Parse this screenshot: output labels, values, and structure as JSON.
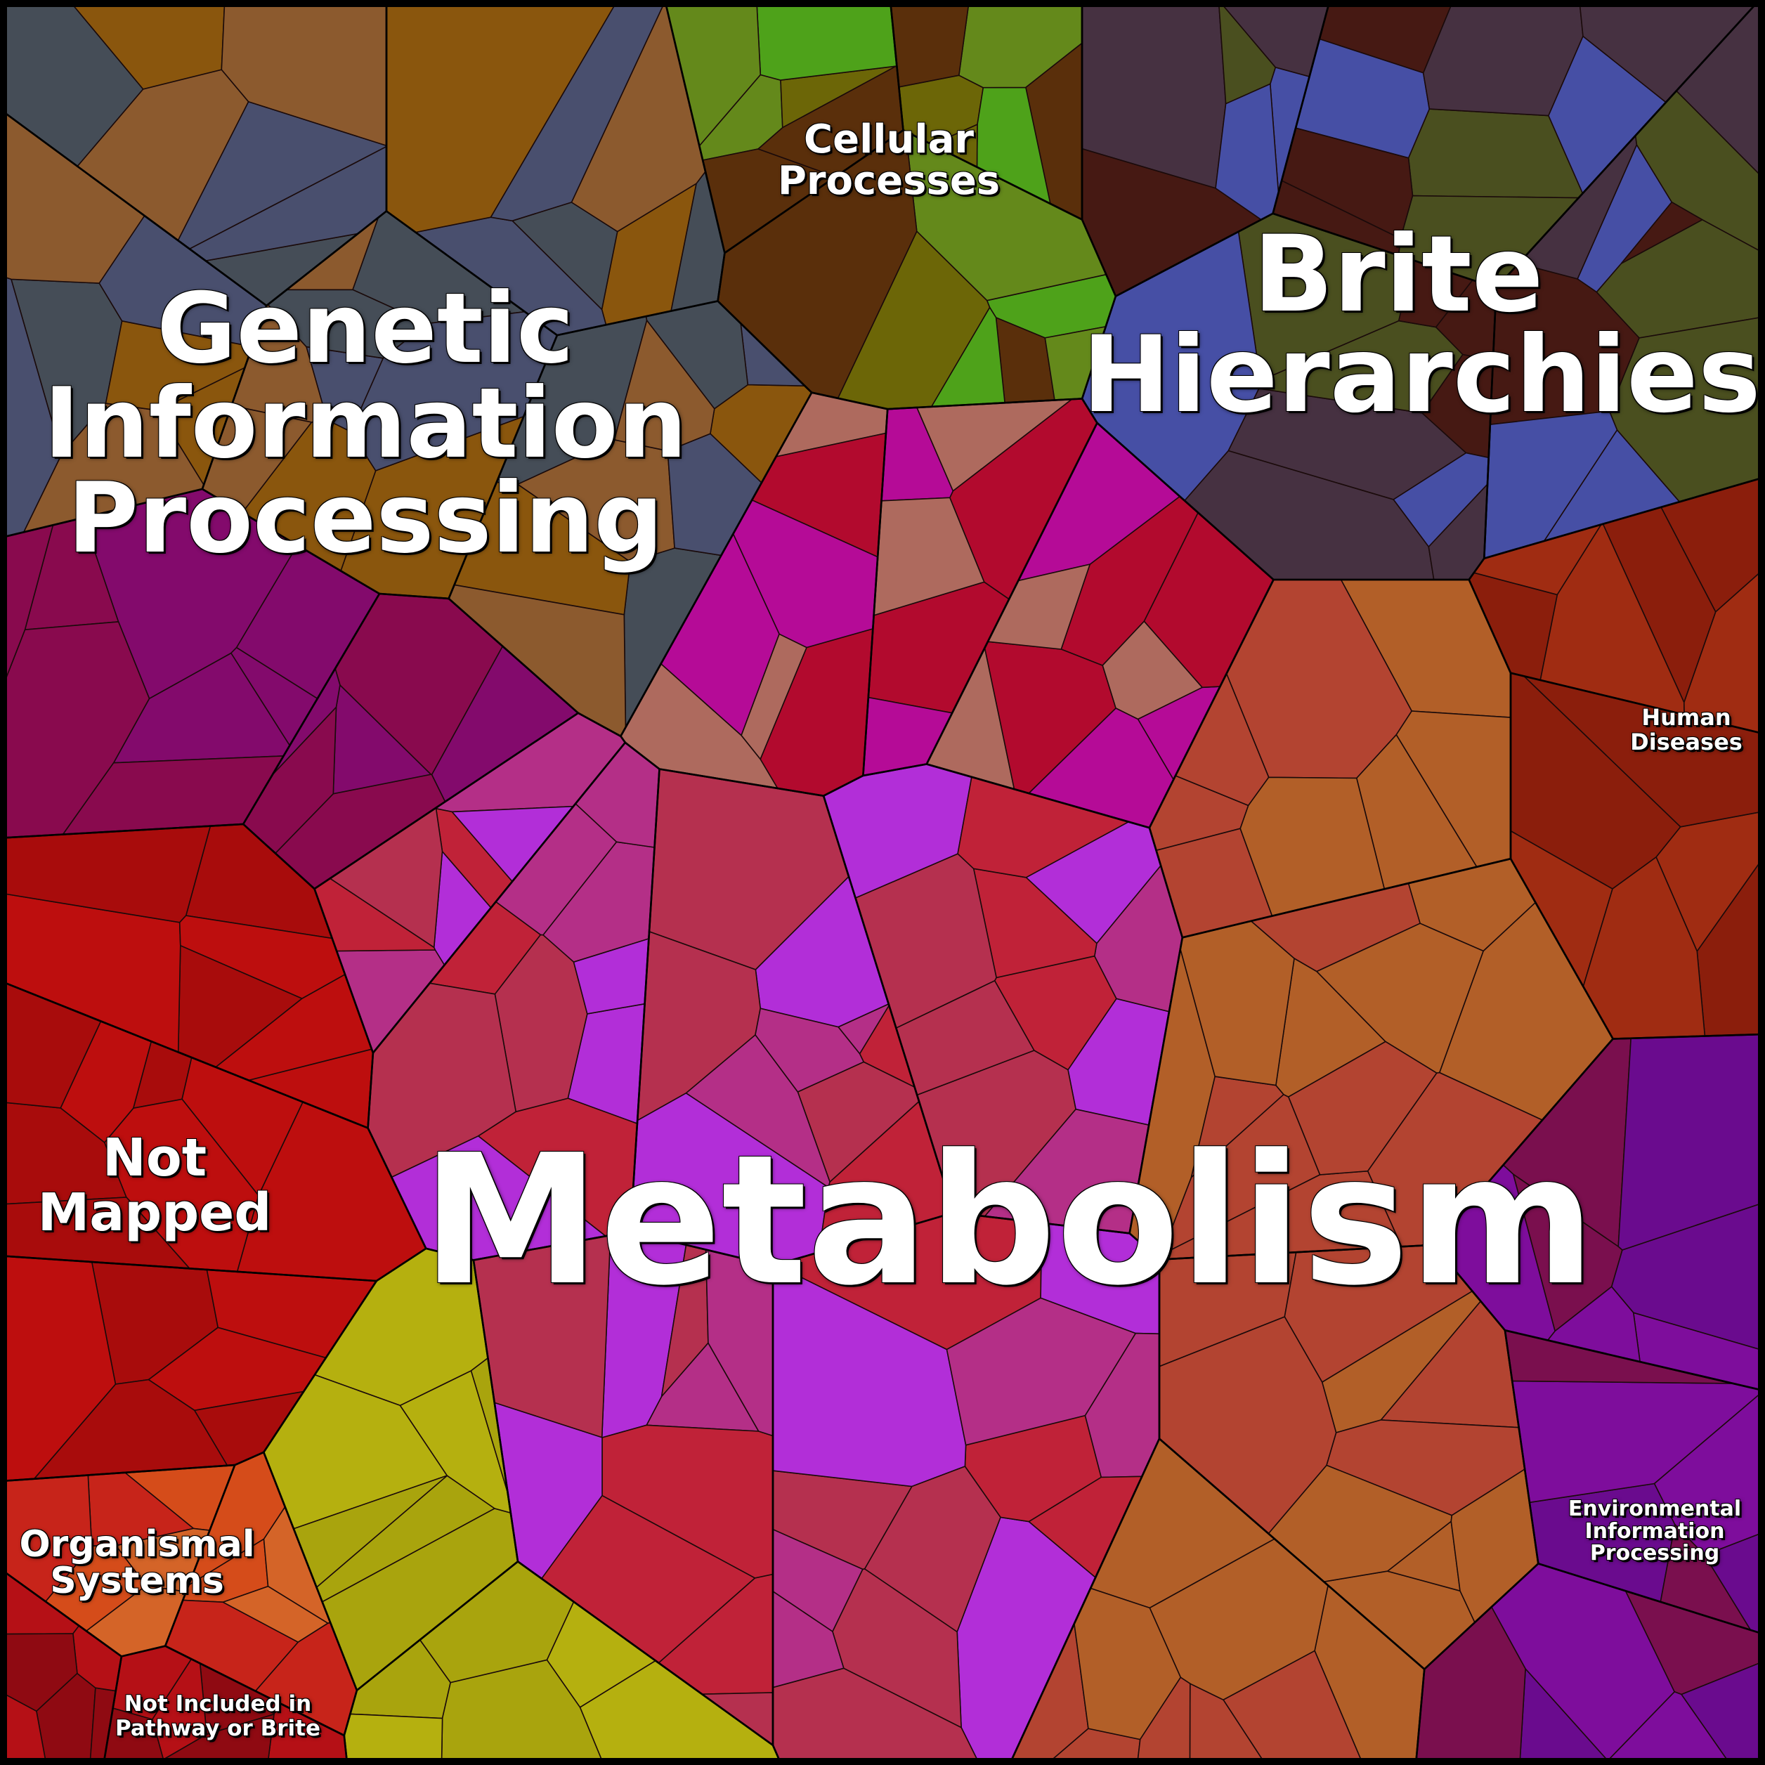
{
  "diagram": {
    "type": "voronoi-treemap",
    "background": "#000000",
    "border_color": "#000000",
    "categories": [
      {
        "key": "metabolism",
        "label": "Metabolism",
        "palette": [
          "#b5304f",
          "#b42f87",
          "#b22ed8",
          "#c02238"
        ]
      },
      {
        "key": "genetic",
        "label": "Genetic\nInformation\nProcessing",
        "palette": [
          "#494f6e",
          "#454d57",
          "#8c5a2e",
          "#8a560d"
        ]
      },
      {
        "key": "brite",
        "label": "Brite\nHierarchies",
        "palette": [
          "#461913",
          "#4a4f1f",
          "#464fa5",
          "#463141"
        ]
      },
      {
        "key": "cellular",
        "label": "Cellular\nProcesses",
        "palette": [
          "#64891b",
          "#5a2f0b",
          "#6c6607",
          "#4ea21a"
        ]
      },
      {
        "key": "not_mapped",
        "label": "Not\nMapped",
        "palette": [
          "#bd0e0e",
          "#a80c0c"
        ]
      },
      {
        "key": "organismal",
        "label": "Organismal\nSystems",
        "palette": [
          "#d46428",
          "#d54c1a",
          "#c7241a"
        ]
      },
      {
        "key": "not_included",
        "label": "Not Included in\nPathway or Brite",
        "palette": [
          "#b51016",
          "#8f0a12"
        ]
      },
      {
        "key": "human_diseases",
        "label": "Human\nDiseases",
        "palette": [
          "#a02c12",
          "#8b1e0c"
        ]
      },
      {
        "key": "environmental",
        "label": "Environmental\nInformation\nProcessing",
        "palette": [
          "#6a0b8e",
          "#7e0d9c",
          "#7a0f4e"
        ]
      },
      {
        "key": "unlabeled_center",
        "label": "",
        "palette": [
          "#b20a2e",
          "#b50b97",
          "#ae6a5e"
        ]
      },
      {
        "key": "unlabeled_left",
        "label": "",
        "palette": [
          "#890a4e",
          "#830a6c"
        ]
      },
      {
        "key": "unlabeled_yellow",
        "label": "",
        "palette": [
          "#b5b00f",
          "#a9a40d"
        ]
      },
      {
        "key": "unlabeled_right",
        "label": "",
        "palette": [
          "#b34431",
          "#b25f28"
        ]
      }
    ]
  }
}
